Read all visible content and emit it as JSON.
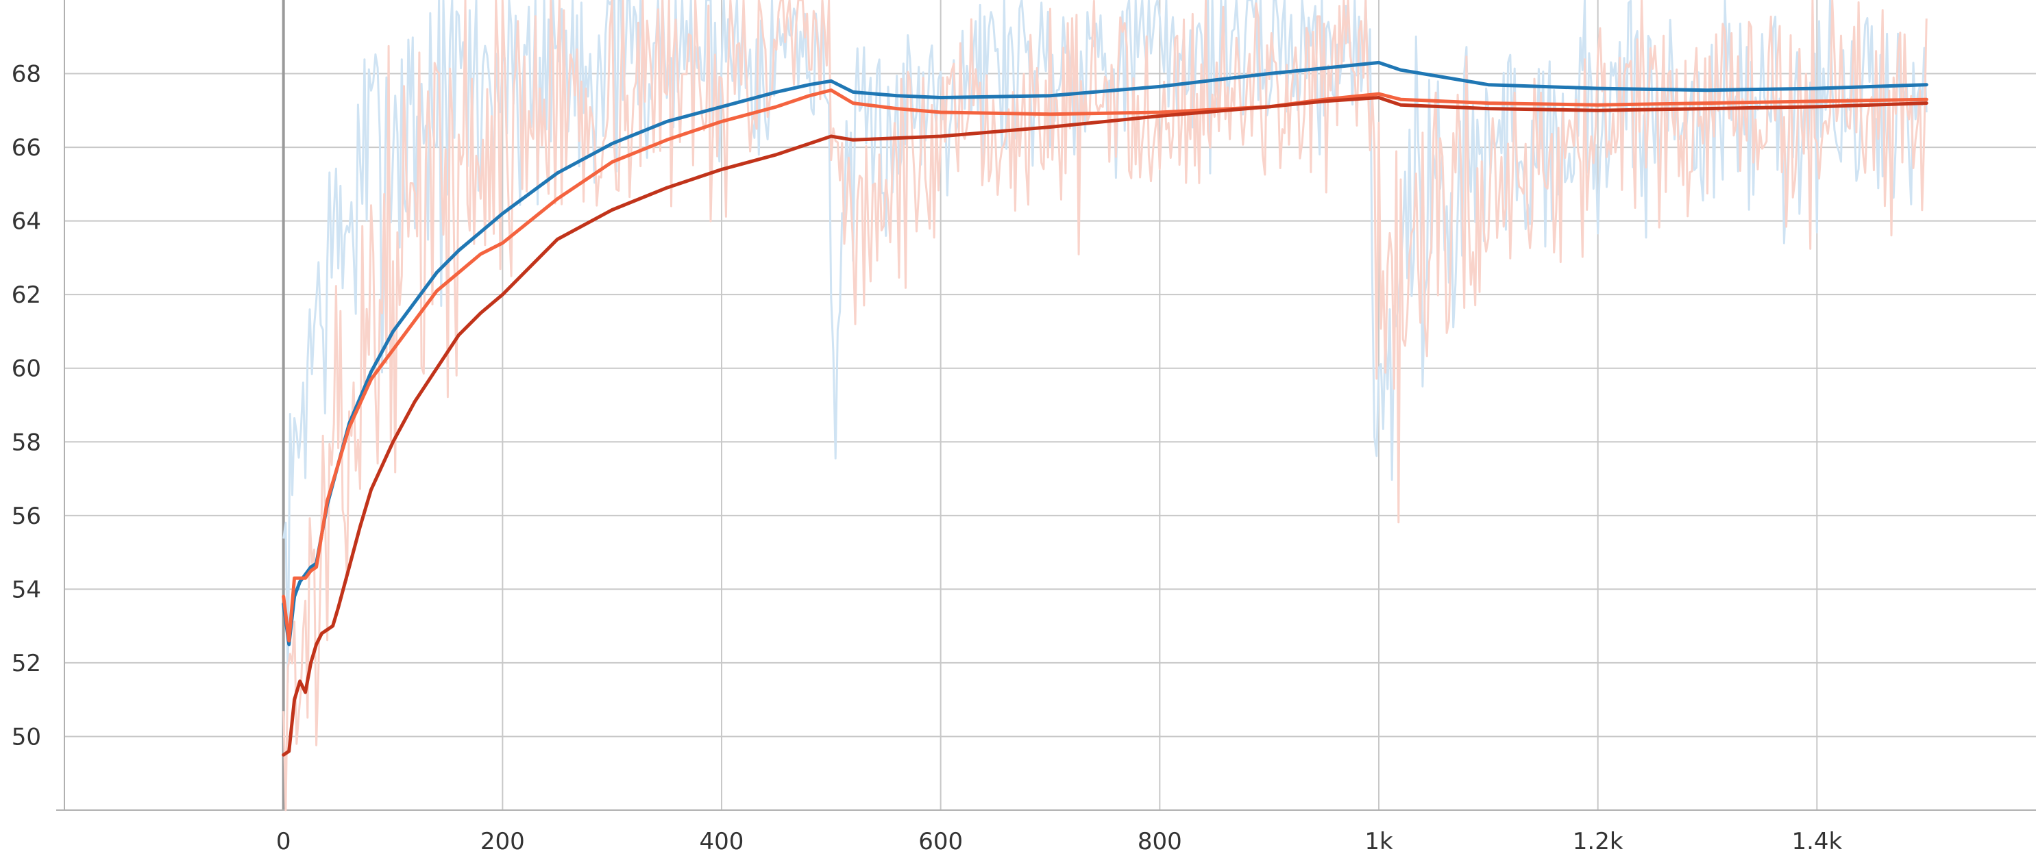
{
  "chart_data": {
    "type": "line",
    "title": "",
    "xlabel": "",
    "ylabel": "",
    "xlim": [
      -200,
      1600
    ],
    "ylim": [
      48,
      70
    ],
    "grid": true,
    "legend": "none",
    "x_ticks": [
      {
        "value": 0,
        "label": "0"
      },
      {
        "value": 200,
        "label": "200"
      },
      {
        "value": 400,
        "label": "400"
      },
      {
        "value": 600,
        "label": "600"
      },
      {
        "value": 800,
        "label": "800"
      },
      {
        "value": 1000,
        "label": "1k"
      },
      {
        "value": 1200,
        "label": "1.2k"
      },
      {
        "value": 1400,
        "label": "1.4k"
      }
    ],
    "y_ticks": [
      {
        "value": 50,
        "label": "50"
      },
      {
        "value": 52,
        "label": "52"
      },
      {
        "value": 54,
        "label": "54"
      },
      {
        "value": 56,
        "label": "56"
      },
      {
        "value": 58,
        "label": "58"
      },
      {
        "value": 60,
        "label": "60"
      },
      {
        "value": 62,
        "label": "62"
      },
      {
        "value": 64,
        "label": "64"
      },
      {
        "value": 66,
        "label": "66"
      },
      {
        "value": 68,
        "label": "68"
      }
    ],
    "raw_series": [
      {
        "color": "#cfe3f3",
        "seed": 7,
        "noise": [
          [
            0,
            3.0
          ],
          [
            100,
            4.5
          ],
          [
            480,
            2.4
          ],
          [
            600,
            2.6
          ],
          [
            990,
            2.4
          ],
          [
            1000,
            6.0
          ],
          [
            1100,
            3.2
          ],
          [
            1500,
            2.6
          ]
        ],
        "x": [
          0,
          5,
          10,
          20,
          40,
          60,
          80,
          100,
          130,
          160,
          200,
          250,
          300,
          350,
          400,
          450,
          495,
          500,
          505,
          510,
          530,
          600,
          700,
          800,
          900,
          990,
          1000,
          1003,
          1010,
          1030,
          1100,
          1200,
          1300,
          1400,
          1500
        ],
        "y": [
          54.5,
          55,
          57,
          60,
          62.5,
          64,
          65.5,
          66.5,
          67,
          67.5,
          68,
          68.5,
          68.8,
          68.8,
          68.8,
          68.8,
          68.8,
          62,
          60,
          64,
          66,
          68,
          68.5,
          68.6,
          68.8,
          68.8,
          58,
          58,
          62,
          64,
          66,
          67,
          67,
          67,
          67
        ]
      },
      {
        "color": "#f9d3ca",
        "seed": 13,
        "noise": [
          [
            0,
            3.5
          ],
          [
            100,
            4.5
          ],
          [
            480,
            2.4
          ],
          [
            600,
            2.6
          ],
          [
            990,
            2.4
          ],
          [
            1000,
            5.0
          ],
          [
            1100,
            3.0
          ],
          [
            1500,
            2.6
          ]
        ],
        "x": [
          0,
          10,
          20,
          30,
          50,
          70,
          100,
          130,
          160,
          200,
          250,
          300,
          350,
          400,
          450,
          495,
          500,
          520,
          600,
          700,
          800,
          900,
          990,
          1000,
          1005,
          1030,
          1100,
          1200,
          1300,
          1400,
          1500
        ],
        "y": [
          51,
          52,
          52,
          54,
          57,
          60,
          63,
          64.5,
          65.5,
          66.5,
          67.2,
          67.5,
          67.8,
          68,
          68.5,
          68.5,
          66,
          64,
          66,
          67,
          67.5,
          67.6,
          67.8,
          60,
          60,
          63,
          65,
          66.5,
          66.8,
          67,
          67
        ]
      }
    ],
    "series": [
      {
        "color": "#1f77b4",
        "x": [
          0,
          5,
          10,
          15,
          20,
          25,
          30,
          35,
          40,
          50,
          60,
          80,
          100,
          120,
          140,
          160,
          180,
          200,
          250,
          300,
          350,
          400,
          450,
          480,
          500,
          520,
          560,
          600,
          700,
          800,
          900,
          950,
          1000,
          1020,
          1100,
          1200,
          1300,
          1400,
          1500
        ],
        "y": [
          53.6,
          52.5,
          53.8,
          54.2,
          54.4,
          54.6,
          54.7,
          55.5,
          56.3,
          57.4,
          58.5,
          59.9,
          61,
          61.8,
          62.6,
          63.2,
          63.7,
          64.2,
          65.3,
          66.1,
          66.7,
          67.1,
          67.5,
          67.7,
          67.8,
          67.5,
          67.4,
          67.35,
          67.4,
          67.65,
          68,
          68.15,
          68.3,
          68.1,
          67.7,
          67.6,
          67.55,
          67.6,
          67.7
        ]
      },
      {
        "color": "#f4633f",
        "x": [
          0,
          5,
          10,
          15,
          20,
          25,
          30,
          40,
          50,
          60,
          80,
          100,
          120,
          140,
          160,
          180,
          200,
          250,
          300,
          350,
          400,
          450,
          480,
          500,
          520,
          560,
          600,
          700,
          800,
          900,
          950,
          1000,
          1020,
          1100,
          1200,
          1300,
          1400,
          1500
        ],
        "y": [
          53.8,
          52.6,
          54.3,
          54.3,
          54.3,
          54.5,
          54.6,
          56.4,
          57.4,
          58.4,
          59.7,
          60.5,
          61.3,
          62.1,
          62.6,
          63.1,
          63.4,
          64.6,
          65.6,
          66.2,
          66.7,
          67.1,
          67.4,
          67.55,
          67.2,
          67.05,
          66.95,
          66.9,
          66.95,
          67.1,
          67.3,
          67.45,
          67.3,
          67.2,
          67.15,
          67.2,
          67.25,
          67.3
        ]
      },
      {
        "color": "#c1331a",
        "x": [
          0,
          5,
          10,
          15,
          20,
          25,
          30,
          35,
          40,
          45,
          50,
          60,
          70,
          80,
          100,
          120,
          140,
          160,
          180,
          200,
          250,
          300,
          350,
          400,
          450,
          480,
          500,
          520,
          560,
          600,
          700,
          800,
          900,
          950,
          1000,
          1020,
          1100,
          1200,
          1300,
          1400,
          1500
        ],
        "y": [
          49.5,
          49.6,
          51,
          51.5,
          51.2,
          52,
          52.5,
          52.8,
          52.9,
          53,
          53.5,
          54.6,
          55.7,
          56.7,
          58,
          59.1,
          60,
          60.9,
          61.5,
          62,
          63.5,
          64.3,
          64.9,
          65.4,
          65.8,
          66.1,
          66.3,
          66.2,
          66.25,
          66.3,
          66.55,
          66.85,
          67.1,
          67.25,
          67.35,
          67.15,
          67.05,
          67.0,
          67.05,
          67.1,
          67.2
        ]
      }
    ]
  }
}
